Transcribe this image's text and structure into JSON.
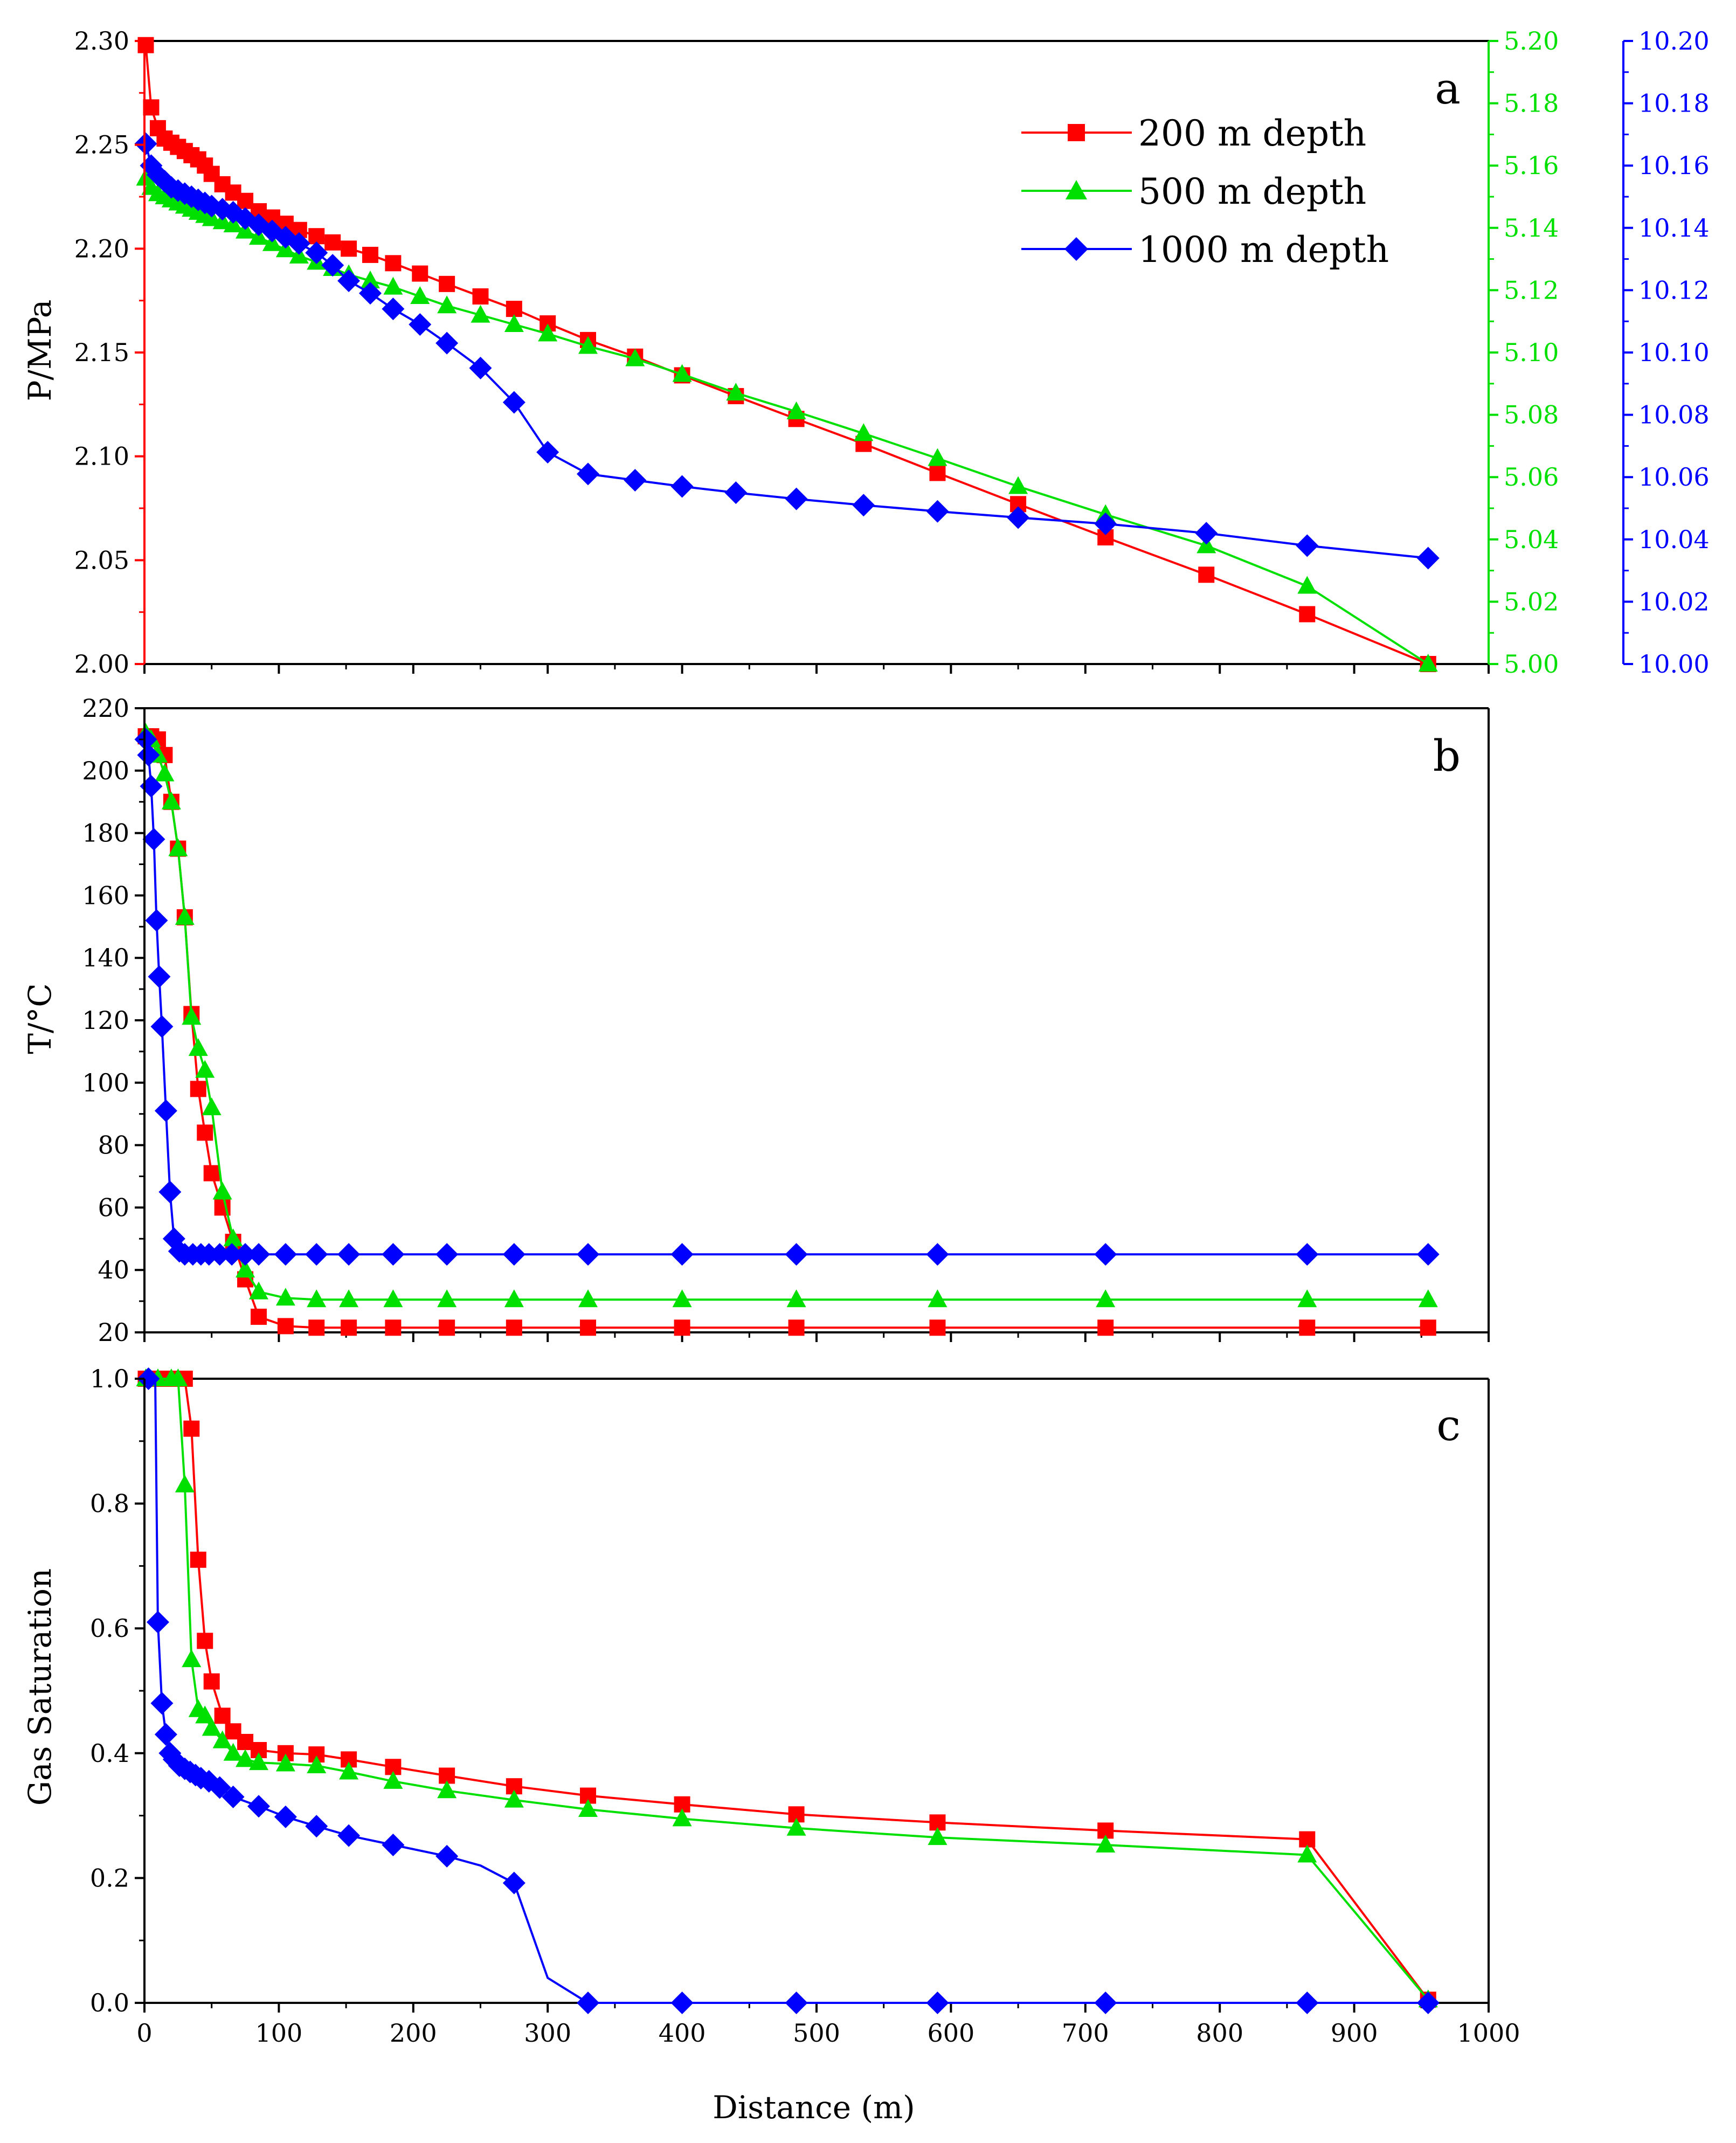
{
  "chart_data": [
    {
      "panel": "a",
      "type": "line",
      "panel_label": "a",
      "xlabel": "",
      "xlim": [
        0,
        1000
      ],
      "legend": {
        "position": "top-right",
        "entries": [
          "200 m depth",
          "500 m depth",
          "1000 m depth"
        ]
      },
      "axes": [
        {
          "id": "left",
          "label": "P/MPa",
          "lim": [
            2.0,
            2.3
          ],
          "ticks": [
            "2.00",
            "2.05",
            "2.10",
            "2.15",
            "2.20",
            "2.25",
            "2.30"
          ],
          "color": "#ff0000"
        },
        {
          "id": "right1",
          "label": "",
          "lim": [
            5.0,
            5.2
          ],
          "ticks": [
            "5.00",
            "5.02",
            "5.04",
            "5.06",
            "5.08",
            "5.10",
            "5.12",
            "5.14",
            "5.16",
            "5.18",
            "5.20"
          ],
          "color": "#00e000"
        },
        {
          "id": "right2",
          "label": "",
          "lim": [
            10.0,
            10.2
          ],
          "ticks": [
            "10.00",
            "10.02",
            "10.04",
            "10.06",
            "10.08",
            "10.10",
            "10.12",
            "10.14",
            "10.16",
            "10.18",
            "10.20"
          ],
          "color": "#0000ff"
        }
      ],
      "series": [
        {
          "name": "200 m depth",
          "axis": "left",
          "color": "#ff0000",
          "marker": "square",
          "x": [
            1,
            5,
            10,
            15,
            20,
            25,
            30,
            35,
            40,
            45,
            50,
            58,
            66,
            75,
            85,
            95,
            105,
            115,
            128,
            140,
            152,
            168,
            185,
            205,
            225,
            250,
            275,
            300,
            330,
            365,
            400,
            440,
            485,
            535,
            590,
            650,
            715,
            790,
            865,
            955
          ],
          "y": [
            2.298,
            2.268,
            2.258,
            2.253,
            2.251,
            2.249,
            2.247,
            2.245,
            2.243,
            2.24,
            2.236,
            2.231,
            2.227,
            2.223,
            2.218,
            2.215,
            2.212,
            2.209,
            2.206,
            2.203,
            2.2,
            2.197,
            2.193,
            2.188,
            2.183,
            2.177,
            2.171,
            2.164,
            2.156,
            2.148,
            2.139,
            2.129,
            2.118,
            2.106,
            2.092,
            2.077,
            2.061,
            2.043,
            2.024,
            2.0
          ]
        },
        {
          "name": "500 m depth",
          "axis": "right1",
          "color": "#00e000",
          "marker": "triangle",
          "x": [
            1,
            5,
            10,
            15,
            20,
            25,
            30,
            35,
            40,
            45,
            50,
            58,
            66,
            75,
            85,
            95,
            105,
            115,
            128,
            140,
            152,
            168,
            185,
            205,
            225,
            250,
            275,
            300,
            330,
            365,
            400,
            440,
            485,
            535,
            590,
            650,
            715,
            790,
            865,
            955
          ],
          "y": [
            5.156,
            5.153,
            5.151,
            5.15,
            5.149,
            5.148,
            5.147,
            5.146,
            5.145,
            5.144,
            5.143,
            5.142,
            5.141,
            5.139,
            5.137,
            5.135,
            5.133,
            5.131,
            5.129,
            5.127,
            5.125,
            5.123,
            5.121,
            5.118,
            5.115,
            5.112,
            5.109,
            5.106,
            5.102,
            5.098,
            5.093,
            5.087,
            5.081,
            5.074,
            5.066,
            5.057,
            5.048,
            5.038,
            5.025,
            5.0
          ]
        },
        {
          "name": "1000 m depth",
          "axis": "right2",
          "color": "#0000ff",
          "marker": "diamond",
          "x": [
            1,
            5,
            10,
            15,
            20,
            25,
            30,
            35,
            40,
            45,
            50,
            58,
            66,
            75,
            85,
            95,
            105,
            115,
            128,
            140,
            152,
            168,
            185,
            205,
            225,
            250,
            275,
            300,
            330,
            365,
            400,
            440,
            485,
            535,
            590,
            650,
            715,
            790,
            865,
            955
          ],
          "y": [
            10.167,
            10.16,
            10.157,
            10.155,
            10.153,
            10.152,
            10.151,
            10.15,
            10.149,
            10.148,
            10.147,
            10.146,
            10.145,
            10.143,
            10.141,
            10.139,
            10.137,
            10.135,
            10.132,
            10.128,
            10.123,
            10.119,
            10.114,
            10.109,
            10.103,
            10.095,
            10.084,
            10.068,
            10.061,
            10.059,
            10.057,
            10.055,
            10.053,
            10.051,
            10.049,
            10.047,
            10.045,
            10.042,
            10.038,
            10.034
          ]
        }
      ]
    },
    {
      "panel": "b",
      "type": "line",
      "panel_label": "b",
      "xlabel": "",
      "xlim": [
        0,
        1000
      ],
      "axes": [
        {
          "id": "left",
          "label": "T/°C",
          "lim": [
            20,
            220
          ],
          "ticks": [
            "20",
            "40",
            "60",
            "80",
            "100",
            "120",
            "140",
            "160",
            "180",
            "200",
            "220"
          ],
          "color": "#000000"
        }
      ],
      "series": [
        {
          "name": "200 m depth",
          "axis": "left",
          "color": "#ff0000",
          "marker": "square",
          "x": [
            1,
            5,
            10,
            15,
            20,
            25,
            30,
            35,
            40,
            45,
            50,
            58,
            66,
            75,
            85,
            105,
            128,
            152,
            185,
            225,
            275,
            330,
            400,
            485,
            590,
            715,
            865,
            955
          ],
          "y": [
            211,
            211,
            210,
            205,
            190,
            175,
            153,
            122,
            98,
            84,
            71,
            60,
            49,
            37,
            25,
            22,
            21.5,
            21.5,
            21.5,
            21.5,
            21.5,
            21.5,
            21.5,
            21.5,
            21.5,
            21.5,
            21.5,
            21.5
          ]
        },
        {
          "name": "500 m depth",
          "axis": "left",
          "color": "#00e000",
          "marker": "triangle",
          "x": [
            1,
            5,
            10,
            15,
            20,
            25,
            30,
            35,
            40,
            45,
            50,
            58,
            66,
            75,
            85,
            105,
            128,
            152,
            185,
            225,
            275,
            330,
            400,
            485,
            590,
            715,
            865,
            955
          ],
          "y": [
            212,
            210,
            205,
            199,
            190,
            175,
            153,
            121,
            111,
            104,
            92,
            65,
            50,
            40,
            33,
            31,
            30.5,
            30.5,
            30.5,
            30.5,
            30.5,
            30.5,
            30.5,
            30.5,
            30.5,
            30.5,
            30.5,
            30.5
          ]
        },
        {
          "name": "1000 m depth",
          "axis": "left",
          "color": "#0000ff",
          "marker": "diamond",
          "x": [
            1,
            3,
            5,
            7,
            9,
            11,
            13,
            16,
            19,
            22,
            26,
            30,
            36,
            42,
            48,
            56,
            65,
            75,
            85,
            105,
            128,
            152,
            185,
            225,
            275,
            330,
            400,
            485,
            590,
            715,
            865,
            955
          ],
          "y": [
            210,
            205,
            195,
            178,
            152,
            134,
            118,
            91,
            65,
            50,
            46,
            45,
            45,
            45,
            45,
            45,
            45,
            45,
            45,
            45,
            45,
            45,
            45,
            45,
            45,
            45,
            45,
            45,
            45,
            45,
            45,
            45
          ]
        }
      ]
    },
    {
      "panel": "c",
      "type": "line",
      "panel_label": "c",
      "xlabel": "Distance (m)",
      "xlim": [
        0,
        1000
      ],
      "xticks": [
        "0",
        "100",
        "200",
        "300",
        "400",
        "500",
        "600",
        "700",
        "800",
        "900",
        "1000"
      ],
      "axes": [
        {
          "id": "left",
          "label": "Gas Saturation",
          "lim": [
            0.0,
            1.0
          ],
          "ticks": [
            "0.0",
            "0.2",
            "0.4",
            "0.6",
            "0.8",
            "1.0"
          ],
          "color": "#000000"
        }
      ],
      "series": [
        {
          "name": "200 m depth",
          "axis": "left",
          "color": "#ff0000",
          "marker": "square",
          "x": [
            1,
            10,
            20,
            30,
            35,
            40,
            45,
            50,
            58,
            66,
            75,
            85,
            105,
            128,
            152,
            185,
            225,
            275,
            330,
            400,
            485,
            590,
            715,
            865,
            955
          ],
          "y": [
            1.0,
            1.0,
            1.0,
            1.0,
            0.92,
            0.71,
            0.58,
            0.515,
            0.46,
            0.435,
            0.418,
            0.405,
            0.4,
            0.398,
            0.39,
            0.378,
            0.364,
            0.347,
            0.332,
            0.318,
            0.302,
            0.289,
            0.276,
            0.262,
            0.005
          ]
        },
        {
          "name": "500 m depth",
          "axis": "left",
          "color": "#00e000",
          "marker": "triangle",
          "x": [
            1,
            10,
            20,
            25,
            30,
            35,
            40,
            45,
            50,
            58,
            66,
            75,
            85,
            105,
            128,
            152,
            185,
            225,
            275,
            330,
            400,
            485,
            590,
            715,
            865,
            955
          ],
          "y": [
            1.0,
            1.0,
            1.0,
            1.0,
            0.83,
            0.55,
            0.47,
            0.46,
            0.44,
            0.42,
            0.4,
            0.39,
            0.385,
            0.383,
            0.38,
            0.37,
            0.355,
            0.34,
            0.325,
            0.31,
            0.295,
            0.28,
            0.265,
            0.253,
            0.237,
            0.005
          ]
        },
        {
          "name": "1000 m depth",
          "axis": "left",
          "color": "#0000ff",
          "marker": "diamond",
          "x": [
            3,
            8,
            10,
            13,
            16,
            19,
            22,
            26,
            30,
            34,
            38,
            42,
            48,
            56,
            66,
            85,
            105,
            128,
            152,
            185,
            225,
            250,
            275,
            300,
            330,
            400,
            485,
            590,
            715,
            865,
            955
          ],
          "y": [
            1.0,
            1.0,
            0.61,
            0.48,
            0.43,
            0.4,
            0.39,
            0.38,
            0.375,
            0.37,
            0.365,
            0.36,
            0.355,
            0.345,
            0.33,
            0.315,
            0.298,
            0.283,
            0.268,
            0.253,
            0.235,
            0.22,
            0.192,
            0.04,
            0.0,
            0.0,
            0.0,
            0.0,
            0.0,
            0.0,
            0.0
          ],
          "markers_at": [
            3,
            10,
            13,
            16,
            19,
            22,
            26,
            30,
            34,
            38,
            42,
            48,
            56,
            66,
            85,
            105,
            128,
            152,
            185,
            225,
            275,
            330,
            400,
            485,
            590,
            715,
            865,
            955
          ]
        }
      ]
    }
  ]
}
